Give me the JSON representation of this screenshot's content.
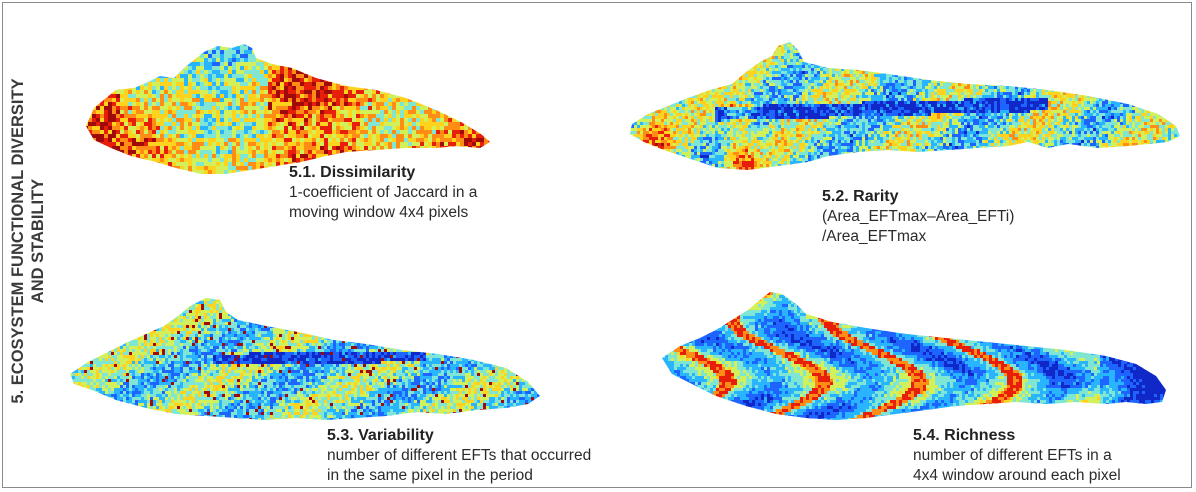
{
  "side_title": {
    "line1": "5. ECOSYSTEM FUNCTIONAL DIVERSITY",
    "line2": "AND STABILITY"
  },
  "panels": [
    {
      "title": "5.1. Dissimilarity",
      "desc1": "1-coefficient of Jaccard in a",
      "desc2": "moving window 4x4 pixels",
      "palette": "warm"
    },
    {
      "title": "5.2. Rarity",
      "desc1": "(Area_EFTmax–Area_EFTi)",
      "desc2": "/Area_EFTmax",
      "palette": "cool-mixed"
    },
    {
      "title": "5.3. Variability",
      "desc1": "number of different EFTs that occurred",
      "desc2": "in the same pixel in the period",
      "palette": "cool"
    },
    {
      "title": "5.4. Richness",
      "desc1": "number of different EFTs in a",
      "desc2": "4x4 window around each pixel",
      "palette": "cool-bands"
    }
  ],
  "colors": {
    "ramp": [
      "#1028c8",
      "#1e64ff",
      "#28b4ff",
      "#7ee6d2",
      "#d2f05a",
      "#ffd21e",
      "#ff8c14",
      "#e61e0a",
      "#a00a0a"
    ],
    "frame": "#8a8a8a",
    "text": "#2b2b2b"
  }
}
